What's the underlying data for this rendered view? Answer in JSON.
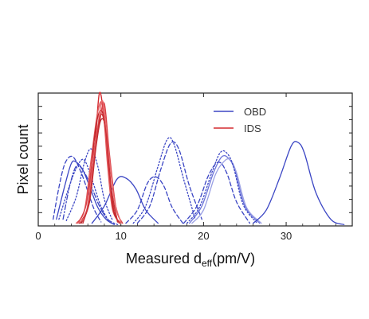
{
  "chart_data": {
    "type": "line",
    "title": "",
    "xlabel_main": "Measured d",
    "xlabel_sub": "eff",
    "xlabel_unit": "(pm/V)",
    "ylabel": "Pixel count",
    "xlim": [
      0,
      38
    ],
    "xticks": [
      "0",
      "10",
      "20",
      "30"
    ],
    "xtick_values": [
      0,
      10,
      20,
      30
    ],
    "ylim": [
      0,
      100
    ],
    "y_tick_labels_shown": false,
    "grid": false,
    "legend_position": "top-right",
    "legend": [
      {
        "label": "OBD",
        "color": "#3b46c4"
      },
      {
        "label": "IDS",
        "color": "#d42a2f"
      }
    ],
    "series": [
      {
        "group": "OBD",
        "style": "solid",
        "color": "#3b46c4",
        "x": [
          2.2,
          3.2,
          4.0,
          4.6,
          5.4,
          6.2,
          7.2,
          8.2,
          9.2
        ],
        "y": [
          5,
          30,
          47,
          48,
          42,
          30,
          14,
          5,
          1
        ]
      },
      {
        "group": "OBD",
        "style": "dashed",
        "color": "#3b46c4",
        "x": [
          1.8,
          2.6,
          3.3,
          4.2,
          5.2,
          6.0,
          6.8,
          7.6
        ],
        "y": [
          5,
          32,
          48,
          52,
          40,
          26,
          12,
          3
        ]
      },
      {
        "group": "OBD",
        "style": "dotted",
        "color": "#3b46c4",
        "x": [
          2.5,
          3.5,
          4.5,
          5.5,
          6.5,
          7.5,
          8.5
        ],
        "y": [
          5,
          25,
          42,
          50,
          35,
          16,
          4
        ]
      },
      {
        "group": "OBD",
        "style": "dashdot",
        "color": "#3b46c4",
        "x": [
          3.0,
          3.8,
          4.6,
          5.4,
          6.4,
          7.4,
          8.4,
          9.6
        ],
        "y": [
          5,
          30,
          45,
          42,
          30,
          15,
          5,
          1
        ]
      },
      {
        "group": "OBD",
        "style": "dotted",
        "color": "#3b46c4",
        "x": [
          3.4,
          4.6,
          5.6,
          6.4,
          7.2,
          8.0,
          9.0
        ],
        "y": [
          4,
          22,
          48,
          58,
          45,
          20,
          4
        ]
      },
      {
        "group": "OBD",
        "style": "solid",
        "color": "#3b46c4",
        "x": [
          6.5,
          8.0,
          9.5,
          10.6,
          11.8,
          13.0,
          14.5
        ],
        "y": [
          2,
          15,
          35,
          36,
          28,
          12,
          2
        ]
      },
      {
        "group": "OBD",
        "style": "dashed",
        "color": "#3b46c4",
        "x": [
          10.6,
          12.0,
          13.2,
          14.2,
          15.2,
          16.2,
          17.5
        ],
        "y": [
          2,
          12,
          32,
          37,
          30,
          14,
          2
        ]
      },
      {
        "group": "OBD",
        "style": "dotted",
        "color": "#3b46c4",
        "x": [
          11.5,
          13.0,
          14.5,
          15.6,
          16.4,
          17.6,
          19.0
        ],
        "y": [
          2,
          15,
          45,
          65,
          62,
          35,
          5
        ]
      },
      {
        "group": "OBD",
        "style": "dashed",
        "color": "#3b46c4",
        "x": [
          12.0,
          13.5,
          14.8,
          16.0,
          17.0,
          18.3,
          19.8
        ],
        "y": [
          2,
          15,
          42,
          62,
          58,
          30,
          5
        ]
      },
      {
        "group": "OBD",
        "style": "solid",
        "color": "#6a72d9",
        "x": [
          18.3,
          19.8,
          21.2,
          22.2,
          23.0,
          23.8,
          25.0,
          26.8
        ],
        "y": [
          2,
          15,
          40,
          52,
          51,
          42,
          15,
          2
        ]
      },
      {
        "group": "OBD",
        "style": "solid",
        "color": "#9aa0e4",
        "x": [
          18.6,
          20.0,
          21.4,
          22.4,
          23.2,
          24.0,
          25.2,
          27.0
        ],
        "y": [
          2,
          12,
          38,
          48,
          50,
          40,
          14,
          2
        ]
      },
      {
        "group": "OBD",
        "style": "dotted",
        "color": "#3b46c4",
        "x": [
          18.0,
          19.5,
          21.0,
          22.0,
          22.8,
          23.6,
          24.8,
          26.5
        ],
        "y": [
          2,
          14,
          40,
          55,
          55,
          45,
          16,
          2
        ]
      },
      {
        "group": "OBD",
        "style": "dashed",
        "color": "#3b46c4",
        "x": [
          17.6,
          19.2,
          20.6,
          21.8,
          22.8,
          24.0,
          25.6
        ],
        "y": [
          2,
          15,
          38,
          48,
          40,
          18,
          2
        ]
      },
      {
        "group": "OBD",
        "style": "solid",
        "color": "#3b46c4",
        "x": [
          26.0,
          27.6,
          29.2,
          30.6,
          31.4,
          32.2,
          33.6,
          35.4,
          37.0
        ],
        "y": [
          2,
          12,
          36,
          60,
          63,
          55,
          25,
          5,
          1
        ]
      },
      {
        "group": "IDS",
        "style": "solid",
        "color": "#d42a2f",
        "x": [
          5.0,
          6.0,
          6.8,
          7.4,
          8.0,
          8.6,
          9.2,
          10.0
        ],
        "y": [
          2,
          15,
          55,
          100,
          78,
          38,
          10,
          2
        ]
      },
      {
        "group": "IDS",
        "style": "solid",
        "color": "#e0595c",
        "x": [
          4.6,
          5.6,
          6.4,
          7.2,
          7.8,
          8.4,
          9.0,
          10.0
        ],
        "y": [
          2,
          12,
          50,
          86,
          90,
          45,
          12,
          2
        ]
      },
      {
        "group": "IDS",
        "style": "solid",
        "color": "#c0272c",
        "x": [
          5.0,
          6.0,
          6.6,
          7.2,
          7.8,
          8.4,
          9.0,
          9.8
        ],
        "y": [
          2,
          14,
          55,
          82,
          85,
          60,
          15,
          2
        ]
      },
      {
        "group": "IDS",
        "style": "solid",
        "color": "#d94046",
        "x": [
          4.8,
          5.8,
          6.6,
          7.4,
          8.0,
          8.6,
          9.4,
          10.2
        ],
        "y": [
          2,
          16,
          52,
          78,
          92,
          55,
          14,
          2
        ]
      },
      {
        "group": "IDS",
        "style": "solid",
        "color": "#b5262a",
        "x": [
          5.2,
          6.2,
          7.0,
          7.6,
          8.2,
          8.8,
          9.6
        ],
        "y": [
          2,
          18,
          60,
          80,
          72,
          30,
          3
        ]
      },
      {
        "group": "IDS",
        "style": "solid",
        "color": "#e86a6d",
        "x": [
          4.8,
          5.8,
          6.6,
          7.2,
          7.8,
          8.4,
          9.2,
          10.0
        ],
        "y": [
          2,
          10,
          45,
          75,
          94,
          62,
          20,
          3
        ]
      },
      {
        "group": "IDS",
        "style": "solid",
        "color": "#cc3035",
        "x": [
          5.4,
          6.2,
          7.0,
          7.6,
          8.2,
          8.8,
          9.6
        ],
        "y": [
          2,
          20,
          62,
          84,
          70,
          28,
          3
        ]
      }
    ]
  }
}
